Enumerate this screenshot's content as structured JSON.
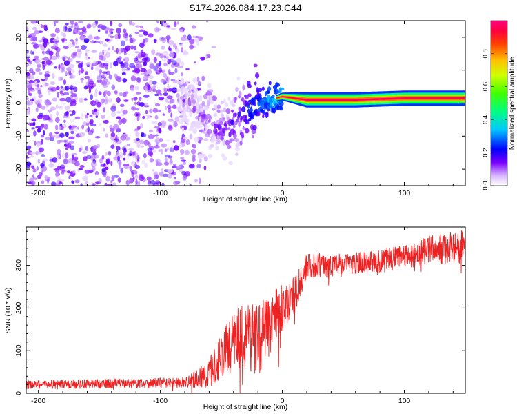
{
  "title": "S174.2026.084.17.23.C44",
  "colors": {
    "snr_line": "#ee2222",
    "axis": "#000000",
    "background": "#ffffff",
    "trend": "#ff2a2a"
  },
  "chart_data": [
    {
      "type": "heatmap",
      "name": "spectrogram",
      "xlabel": "Height of straight line (km)",
      "ylabel": "Frequency (Hz)",
      "xlim": [
        -210,
        150
      ],
      "ylim": [
        -25,
        25
      ],
      "xticks": [
        -200,
        -100,
        0,
        100
      ],
      "yticks": [
        -20,
        -10,
        0,
        10,
        20
      ],
      "xtick_labels": [
        "-200",
        "-100",
        "0",
        "100"
      ],
      "ytick_labels": [
        "-20",
        "-10",
        "0",
        "10",
        "20"
      ],
      "colorbar": {
        "label": "Normalized spectral amplitude",
        "range": [
          0.0,
          1.0
        ],
        "ticks": [
          0.0,
          0.2,
          0.4,
          0.6,
          0.8
        ],
        "tick_labels": [
          "0.0",
          "0.2",
          "0.4",
          "0.6",
          "0.8"
        ],
        "colormap": "rainbow"
      },
      "noise_region": {
        "x_range": [
          -210,
          -65
        ],
        "f_range": [
          -25,
          25
        ],
        "amplitude": [
          0.02,
          0.15
        ]
      },
      "signal_track": [
        {
          "x": -80,
          "f": 1,
          "amp": 0.1
        },
        {
          "x": -60,
          "f": -6,
          "amp": 0.15
        },
        {
          "x": -45,
          "f": -8,
          "amp": 0.2
        },
        {
          "x": -35,
          "f": -3,
          "amp": 0.25
        },
        {
          "x": -20,
          "f": 0,
          "amp": 0.4
        },
        {
          "x": -10,
          "f": 1,
          "amp": 0.5
        },
        {
          "x": 0,
          "f": 2,
          "amp": 0.55
        },
        {
          "x": 20,
          "f": 1,
          "amp": 0.9
        },
        {
          "x": 60,
          "f": 1,
          "amp": 0.95
        },
        {
          "x": 100,
          "f": 1.5,
          "amp": 1.0
        },
        {
          "x": 150,
          "f": 1.5,
          "amp": 1.0
        }
      ]
    },
    {
      "type": "line",
      "name": "snr",
      "xlabel": "Height of straight line (km)",
      "ylabel": "SNR (10 * v/v)",
      "xlim": [
        -210,
        150
      ],
      "ylim": [
        0,
        390
      ],
      "xticks": [
        -200,
        -100,
        0,
        100
      ],
      "yticks": [
        0,
        100,
        200,
        300
      ],
      "xtick_labels": [
        "-200",
        "-100",
        "0",
        "100"
      ],
      "ytick_labels": [
        "0",
        "100",
        "200",
        "300"
      ],
      "trend": {
        "x": [
          -210,
          -80,
          -60,
          -50,
          -40,
          -30,
          -20,
          -10,
          0,
          10,
          20,
          40,
          60,
          80,
          100,
          120,
          150
        ],
        "y": [
          20,
          25,
          45,
          90,
          120,
          140,
          130,
          160,
          200,
          230,
          300,
          300,
          305,
          310,
          320,
          335,
          345
        ]
      },
      "noise_amplitude": {
        "x": [
          -210,
          -80,
          -60,
          -40,
          -20,
          0,
          20,
          60,
          100,
          150
        ],
        "y": [
          10,
          12,
          35,
          70,
          90,
          55,
          30,
          25,
          30,
          40
        ]
      }
    }
  ]
}
